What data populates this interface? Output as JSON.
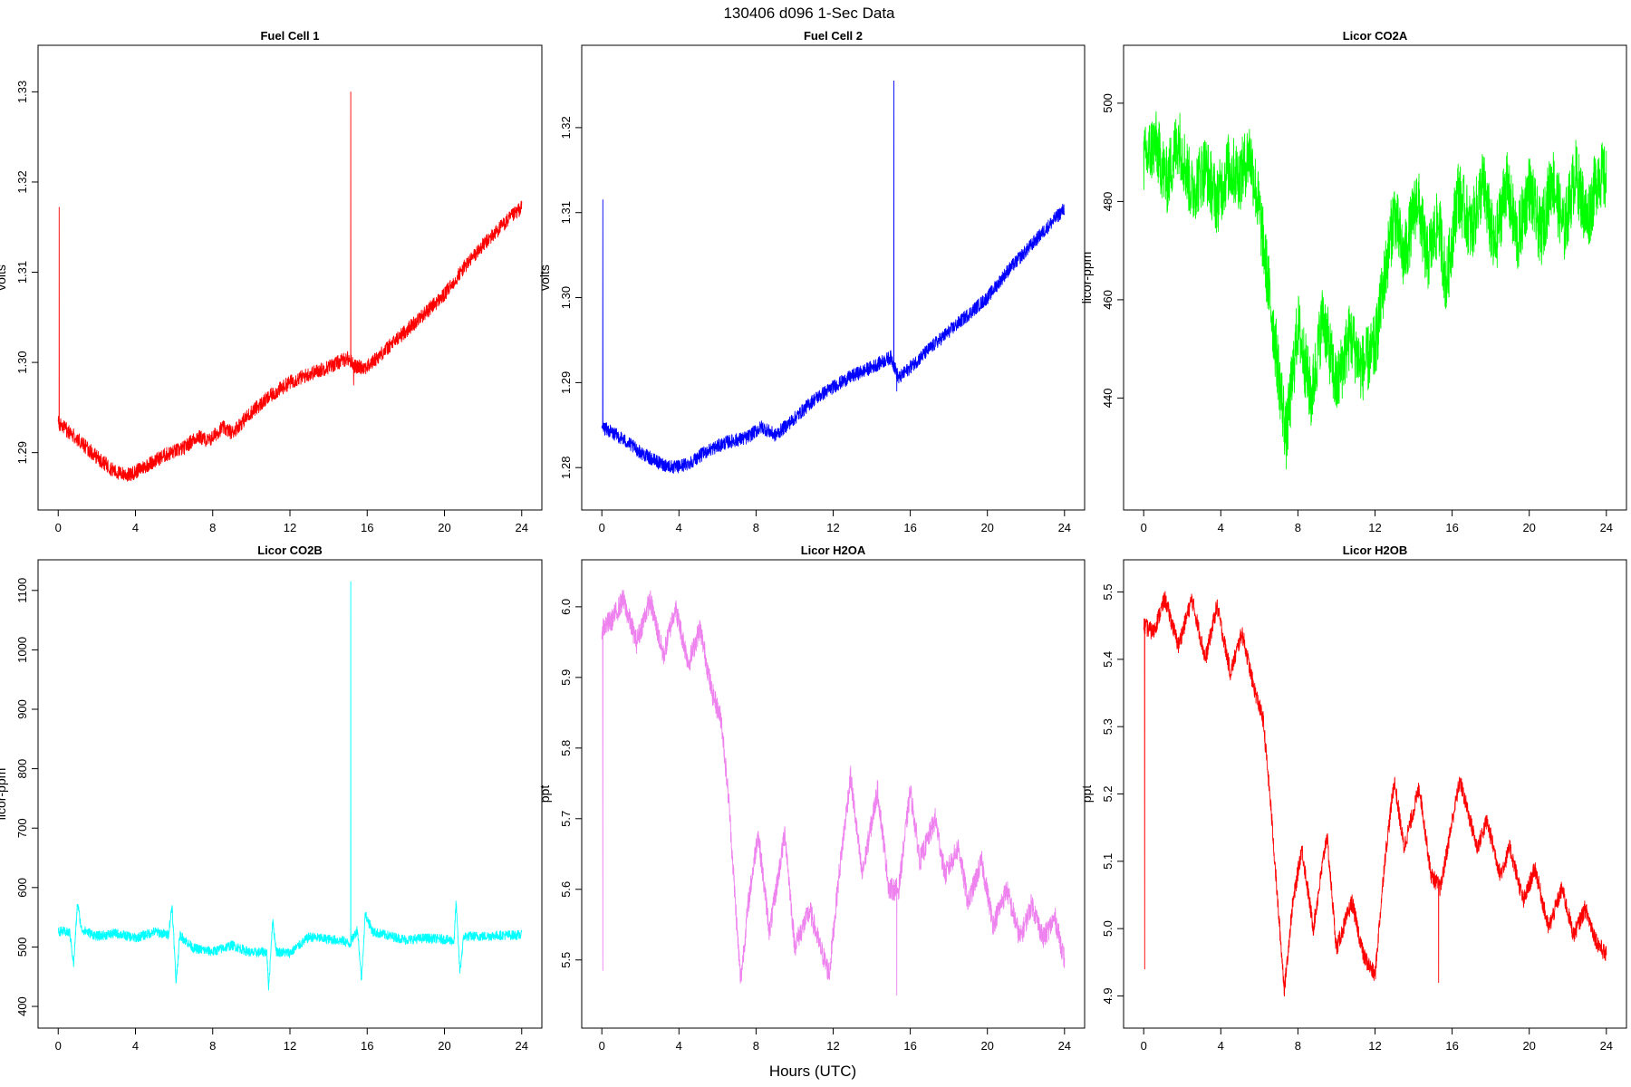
{
  "figure": {
    "title": "130406   d096   1-Sec Data",
    "xlabel": "Hours (UTC)"
  },
  "chart_data": [
    {
      "type": "line",
      "title": "Fuel Cell 1",
      "ylabel": "volts",
      "color": "#ff0000",
      "xlim": [
        0,
        24
      ],
      "ylim": [
        1.2857,
        1.3331
      ],
      "x_ticks": [
        0,
        4,
        8,
        12,
        16,
        20,
        24
      ],
      "y_ticks": [
        1.29,
        1.3,
        1.31,
        1.32,
        1.33
      ],
      "y_tick_labels": [
        "1.29",
        "1.30",
        "1.31",
        "1.32",
        "1.33"
      ],
      "noise": 0.0008,
      "points": [
        [
          0,
          1.2933
        ],
        [
          1,
          1.2915
        ],
        [
          2,
          1.2895
        ],
        [
          3,
          1.2878
        ],
        [
          3.7,
          1.2875
        ],
        [
          4.5,
          1.2885
        ],
        [
          5.5,
          1.2897
        ],
        [
          6.5,
          1.2905
        ],
        [
          7.2,
          1.2918
        ],
        [
          7.8,
          1.2913
        ],
        [
          8.5,
          1.2928
        ],
        [
          9,
          1.2922
        ],
        [
          10,
          1.2945
        ],
        [
          11,
          1.2963
        ],
        [
          12,
          1.2978
        ],
        [
          13,
          1.2987
        ],
        [
          14,
          1.2995
        ],
        [
          15,
          1.3005
        ],
        [
          15.4,
          1.2995
        ],
        [
          16,
          1.2995
        ],
        [
          17,
          1.3015
        ],
        [
          18,
          1.3035
        ],
        [
          19,
          1.3055
        ],
        [
          20,
          1.3075
        ],
        [
          21,
          1.3105
        ],
        [
          22,
          1.313
        ],
        [
          23,
          1.3152
        ],
        [
          24,
          1.3172
        ]
      ],
      "spikes": [
        [
          0.05,
          1.3172
        ],
        [
          15.15,
          1.33
        ],
        [
          15.3,
          1.2975
        ]
      ]
    },
    {
      "type": "line",
      "title": "Fuel Cell 2",
      "ylabel": "volts",
      "color": "#0000ff",
      "xlim": [
        0,
        24
      ],
      "ylim": [
        1.2772,
        1.3275
      ],
      "x_ticks": [
        0,
        4,
        8,
        12,
        16,
        20,
        24
      ],
      "y_ticks": [
        1.28,
        1.29,
        1.3,
        1.31,
        1.32
      ],
      "y_tick_labels": [
        "1.28",
        "1.29",
        "1.30",
        "1.31",
        "1.32"
      ],
      "noise": 0.0008,
      "points": [
        [
          0,
          1.2848
        ],
        [
          1,
          1.2835
        ],
        [
          2,
          1.2818
        ],
        [
          3,
          1.2805
        ],
        [
          3.8,
          1.28
        ],
        [
          4.5,
          1.2805
        ],
        [
          5.5,
          1.282
        ],
        [
          6.5,
          1.283
        ],
        [
          7.5,
          1.2835
        ],
        [
          8.3,
          1.2848
        ],
        [
          9,
          1.2838
        ],
        [
          10,
          1.2858
        ],
        [
          11,
          1.288
        ],
        [
          12,
          1.2895
        ],
        [
          13,
          1.2908
        ],
        [
          14,
          1.2918
        ],
        [
          15,
          1.293
        ],
        [
          15.4,
          1.2905
        ],
        [
          16,
          1.2918
        ],
        [
          17,
          1.294
        ],
        [
          18,
          1.296
        ],
        [
          19,
          1.298
        ],
        [
          20,
          1.3
        ],
        [
          21,
          1.303
        ],
        [
          22,
          1.3055
        ],
        [
          23,
          1.308
        ],
        [
          24,
          1.3105
        ]
      ],
      "spikes": [
        [
          0.05,
          1.3115
        ],
        [
          15.15,
          1.3255
        ],
        [
          15.3,
          1.289
        ]
      ]
    },
    {
      "type": "line",
      "title": "Licor CO2A",
      "ylabel": "licor-ppm",
      "color": "#00ff00",
      "xlim": [
        0,
        24
      ],
      "ylim": [
        421,
        508
      ],
      "x_ticks": [
        0,
        4,
        8,
        12,
        16,
        20,
        24
      ],
      "y_ticks": [
        440,
        460,
        480,
        500
      ],
      "y_tick_labels": [
        "440",
        "460",
        "480",
        "500"
      ],
      "noise": 7,
      "points": [
        [
          0,
          488
        ],
        [
          0.6,
          492
        ],
        [
          1.2,
          484
        ],
        [
          1.8,
          493
        ],
        [
          2.5,
          482
        ],
        [
          3.2,
          487
        ],
        [
          3.8,
          480
        ],
        [
          4.4,
          487
        ],
        [
          5,
          485
        ],
        [
          5.5,
          490
        ],
        [
          6,
          478
        ],
        [
          6.5,
          462
        ],
        [
          7,
          445
        ],
        [
          7.4,
          432
        ],
        [
          8,
          455
        ],
        [
          8.7,
          440
        ],
        [
          9.3,
          457
        ],
        [
          10,
          442
        ],
        [
          10.7,
          453
        ],
        [
          11.3,
          446
        ],
        [
          12,
          450
        ],
        [
          12.4,
          462
        ],
        [
          13,
          478
        ],
        [
          13.5,
          468
        ],
        [
          14.2,
          481
        ],
        [
          14.7,
          468
        ],
        [
          15.3,
          476
        ],
        [
          15.7,
          463
        ],
        [
          16.3,
          482
        ],
        [
          17,
          474
        ],
        [
          17.6,
          484
        ],
        [
          18.2,
          470
        ],
        [
          18.8,
          484
        ],
        [
          19.4,
          472
        ],
        [
          20,
          483
        ],
        [
          20.6,
          473
        ],
        [
          21.2,
          485
        ],
        [
          21.8,
          474
        ],
        [
          22.4,
          486
        ],
        [
          23,
          476
        ],
        [
          23.6,
          486
        ],
        [
          24,
          484
        ]
      ],
      "spikes": []
    },
    {
      "type": "line",
      "title": "Licor CO2B",
      "ylabel": "licor-ppm",
      "color": "#00ffff",
      "xlim": [
        0,
        24
      ],
      "ylim": [
        395,
        1120
      ],
      "x_ticks": [
        0,
        4,
        8,
        12,
        16,
        20,
        24
      ],
      "y_ticks": [
        400,
        500,
        600,
        700,
        800,
        900,
        1000,
        1100
      ],
      "y_tick_labels": [
        "400",
        "500",
        "600",
        "700",
        "800",
        "900",
        "1000",
        "1100"
      ],
      "noise": 8,
      "points": [
        [
          0,
          527
        ],
        [
          0.6,
          524
        ],
        [
          0.8,
          470
        ],
        [
          1,
          575
        ],
        [
          1.2,
          530
        ],
        [
          2,
          518
        ],
        [
          3,
          523
        ],
        [
          4,
          515
        ],
        [
          5,
          526
        ],
        [
          5.7,
          520
        ],
        [
          5.9,
          570
        ],
        [
          6.1,
          440
        ],
        [
          6.3,
          520
        ],
        [
          7,
          498
        ],
        [
          8,
          492
        ],
        [
          9,
          503
        ],
        [
          10,
          490
        ],
        [
          10.8,
          492
        ],
        [
          10.9,
          430
        ],
        [
          11.1,
          545
        ],
        [
          11.3,
          492
        ],
        [
          12,
          490
        ],
        [
          13,
          517
        ],
        [
          14,
          513
        ],
        [
          14.8,
          510
        ],
        [
          15.1,
          505
        ],
        [
          15.5,
          530
        ],
        [
          15.7,
          445
        ],
        [
          15.9,
          555
        ],
        [
          16.3,
          525
        ],
        [
          17,
          520
        ],
        [
          18,
          512
        ],
        [
          19,
          515
        ],
        [
          20,
          513
        ],
        [
          20.5,
          510
        ],
        [
          20.6,
          575
        ],
        [
          20.8,
          458
        ],
        [
          21,
          518
        ],
        [
          22,
          518
        ],
        [
          23,
          520
        ],
        [
          24,
          520
        ]
      ],
      "spikes": [
        [
          15.15,
          1115
        ]
      ]
    },
    {
      "type": "line",
      "title": "Licor H2OA",
      "ylabel": "ppt",
      "color": "#ee82ee",
      "xlim": [
        0,
        24
      ],
      "ylim": [
        5.43,
        6.04
      ],
      "x_ticks": [
        0,
        4,
        8,
        12,
        16,
        20,
        24
      ],
      "y_ticks": [
        5.5,
        5.6,
        5.7,
        5.8,
        5.9,
        6.0
      ],
      "y_tick_labels": [
        "5.5",
        "5.6",
        "5.7",
        "5.8",
        "5.9",
        "6.0"
      ],
      "noise": 0.016,
      "points": [
        [
          0,
          5.97
        ],
        [
          0.5,
          5.98
        ],
        [
          1.1,
          6.01
        ],
        [
          1.8,
          5.95
        ],
        [
          2.5,
          6.01
        ],
        [
          3.2,
          5.93
        ],
        [
          3.8,
          6.0
        ],
        [
          4.5,
          5.92
        ],
        [
          5.1,
          5.97
        ],
        [
          5.7,
          5.88
        ],
        [
          6.2,
          5.84
        ],
        [
          6.6,
          5.72
        ],
        [
          7,
          5.55
        ],
        [
          7.2,
          5.47
        ],
        [
          7.6,
          5.58
        ],
        [
          8.1,
          5.68
        ],
        [
          8.7,
          5.54
        ],
        [
          9.5,
          5.68
        ],
        [
          10,
          5.52
        ],
        [
          10.8,
          5.57
        ],
        [
          11.3,
          5.52
        ],
        [
          11.8,
          5.48
        ],
        [
          12.3,
          5.62
        ],
        [
          12.9,
          5.76
        ],
        [
          13.5,
          5.62
        ],
        [
          14.3,
          5.74
        ],
        [
          14.9,
          5.6
        ],
        [
          15.4,
          5.6
        ],
        [
          16,
          5.74
        ],
        [
          16.5,
          5.64
        ],
        [
          17.3,
          5.7
        ],
        [
          17.8,
          5.62
        ],
        [
          18.5,
          5.66
        ],
        [
          19,
          5.58
        ],
        [
          19.7,
          5.64
        ],
        [
          20.3,
          5.55
        ],
        [
          21,
          5.6
        ],
        [
          21.7,
          5.53
        ],
        [
          22.3,
          5.58
        ],
        [
          22.9,
          5.53
        ],
        [
          23.5,
          5.56
        ],
        [
          24,
          5.5
        ]
      ],
      "spikes": [
        [
          0.05,
          5.485
        ],
        [
          15.3,
          5.45
        ]
      ]
    },
    {
      "type": "line",
      "title": "Licor H2OB",
      "ylabel": "ppt",
      "color": "#ff0000",
      "xlim": [
        0,
        24
      ],
      "ylim": [
        4.88,
        5.52
      ],
      "x_ticks": [
        0,
        4,
        8,
        12,
        16,
        20,
        24
      ],
      "y_ticks": [
        4.9,
        5.0,
        5.1,
        5.2,
        5.3,
        5.4,
        5.5
      ],
      "y_tick_labels": [
        "4.9",
        "5.0",
        "5.1",
        "5.2",
        "5.3",
        "5.4",
        "5.5"
      ],
      "noise": 0.013,
      "points": [
        [
          0,
          5.45
        ],
        [
          0.5,
          5.44
        ],
        [
          1.1,
          5.49
        ],
        [
          1.8,
          5.42
        ],
        [
          2.5,
          5.49
        ],
        [
          3.2,
          5.4
        ],
        [
          3.8,
          5.48
        ],
        [
          4.5,
          5.38
        ],
        [
          5.1,
          5.44
        ],
        [
          5.7,
          5.36
        ],
        [
          6.2,
          5.31
        ],
        [
          6.6,
          5.18
        ],
        [
          7,
          5.02
        ],
        [
          7.3,
          4.91
        ],
        [
          7.7,
          5.03
        ],
        [
          8.2,
          5.12
        ],
        [
          8.8,
          5.0
        ],
        [
          9.5,
          5.14
        ],
        [
          10,
          4.97
        ],
        [
          10.8,
          5.04
        ],
        [
          11.4,
          4.96
        ],
        [
          12,
          4.93
        ],
        [
          12.5,
          5.1
        ],
        [
          13,
          5.22
        ],
        [
          13.5,
          5.12
        ],
        [
          14.3,
          5.21
        ],
        [
          14.9,
          5.08
        ],
        [
          15.4,
          5.06
        ],
        [
          16,
          5.16
        ],
        [
          16.4,
          5.22
        ],
        [
          17.3,
          5.12
        ],
        [
          17.8,
          5.16
        ],
        [
          18.5,
          5.08
        ],
        [
          19,
          5.12
        ],
        [
          19.7,
          5.04
        ],
        [
          20.3,
          5.09
        ],
        [
          21,
          5.0
        ],
        [
          21.7,
          5.06
        ],
        [
          22.3,
          4.99
        ],
        [
          22.9,
          5.03
        ],
        [
          23.5,
          4.98
        ],
        [
          24,
          4.96
        ]
      ],
      "spikes": [
        [
          0.05,
          4.94
        ],
        [
          15.3,
          4.92
        ]
      ]
    }
  ]
}
